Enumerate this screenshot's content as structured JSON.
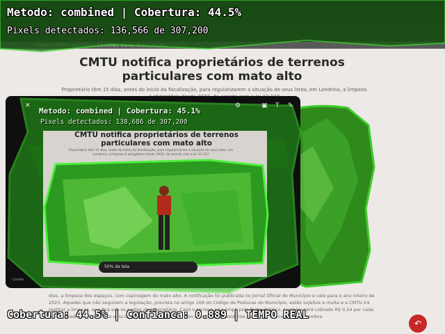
{
  "overlay": {
    "title": "Metodo: combined | Cobertura: 44.5%",
    "pixels": "Pixels detectados: 136,566 de 307,200",
    "bottom": "Cobertura: 44.5% | Confianca: 0.889 | TEMPO REAL",
    "accent_color": "#22dd22"
  },
  "inner_overlay": {
    "title": "Metodo: combined | Cobertura: 45.1%",
    "pixels": "Pixels detectados: 138,686 de 307,200"
  },
  "article": {
    "title": "CMTU notifica proprietários de terrenos particulares com mato alto",
    "lead": "Proprietário têm 15 dias, antes do início da fiscalização, para regularizarem a situação de seus lotes; em Londrina, a limpeza é obrigatória desde 2022, de acordo com a lei 13.127",
    "body": "dias, a limpeza dos espaços, com capinagem do mato alto. A notificação foi publicada no Jornal Oficial do Município e vale para o ano inteiro de 2023. Aqueles que não seguirem a legislação, prevista no artigo 169 do Código de Posturas do Município, estão sujeitos a multa e a CMTU irá realizar a limpeza, que fica sob os custos do proprietário. Caso o terreno seja limpo pelo Poder Público, também será cobrado R$ 0,54 por cada metro quadrado realizado a uma taxa de 10% sobre o valor dos serviços. O presidente da CMTU, Marcelo Cortez, lembra",
    "menu": "Home  Sobre  Notícias  Colunas  Geral  Mais  Home"
  },
  "inner_article": {
    "title": "CMTU notifica proprietários de terrenos particulares com mato alto",
    "lead": "Proprietário têm 15 dias, antes do início da fiscalização, para regularizarem a situação de seus lotes; em Londrina, a limpeza é obrigatória desde 2022, de acordo com a lei 13.127",
    "button": "50% da tela",
    "phone_label": "Louise"
  },
  "icons": {
    "close": "close-icon",
    "settings": "gear-icon",
    "text": "text-icon",
    "edit": "pencil-icon",
    "fab": "undo-icon"
  }
}
